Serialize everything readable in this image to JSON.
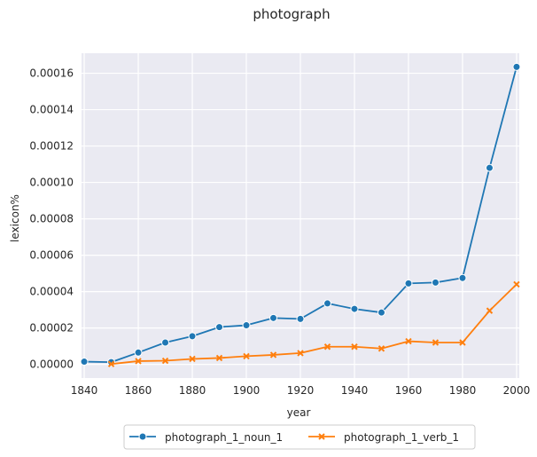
{
  "chart_data": {
    "type": "line",
    "title": "photograph",
    "xlabel": "year",
    "ylabel": "lexicon%",
    "xlim": [
      1839,
      2001
    ],
    "ylim": [
      -7.5e-06,
      0.000171
    ],
    "x_ticks": [
      1840,
      1860,
      1880,
      1900,
      1920,
      1940,
      1960,
      1980,
      2000
    ],
    "y_ticks": [
      0,
      2e-05,
      4e-05,
      6e-05,
      8e-05,
      0.0001,
      0.00012,
      0.00014,
      0.00016
    ],
    "x_tick_labels": [
      "1840",
      "1860",
      "1880",
      "1900",
      "1920",
      "1940",
      "1960",
      "1980",
      "2000"
    ],
    "y_tick_labels": [
      "0.00000",
      "0.00002",
      "0.00004",
      "0.00006",
      "0.00008",
      "0.00010",
      "0.00012",
      "0.00014",
      "0.00016"
    ],
    "grid": true,
    "legend_position": "bottom-center",
    "background_color": "#eaeaf2",
    "grid_color": "#ffffff",
    "series": [
      {
        "name": "photograph_1_noun_1",
        "color": "#1f77b4",
        "marker": "circle",
        "x": [
          1840,
          1850,
          1860,
          1870,
          1880,
          1890,
          1900,
          1910,
          1920,
          1930,
          1940,
          1950,
          1960,
          1970,
          1980,
          1990,
          2000
        ],
        "y": [
          1.5e-06,
          1.2e-06,
          6.5e-06,
          1.2e-05,
          1.55e-05,
          2.05e-05,
          2.15e-05,
          2.55e-05,
          2.5e-05,
          3.35e-05,
          3.05e-05,
          2.85e-05,
          4.45e-05,
          4.5e-05,
          4.75e-05,
          0.000108,
          0.0001635
        ]
      },
      {
        "name": "photograph_1_verb_1",
        "color": "#ff7f0e",
        "marker": "x",
        "x": [
          1850,
          1860,
          1870,
          1880,
          1890,
          1900,
          1910,
          1920,
          1930,
          1940,
          1950,
          1960,
          1970,
          1980,
          1990,
          2000
        ],
        "y": [
          2e-07,
          1.8e-06,
          2e-06,
          3e-06,
          3.5e-06,
          4.5e-06,
          5.2e-06,
          6.2e-06,
          9.7e-06,
          9.7e-06,
          8.7e-06,
          1.27e-05,
          1.2e-05,
          1.2e-05,
          2.95e-05,
          4.4e-05
        ]
      }
    ]
  }
}
